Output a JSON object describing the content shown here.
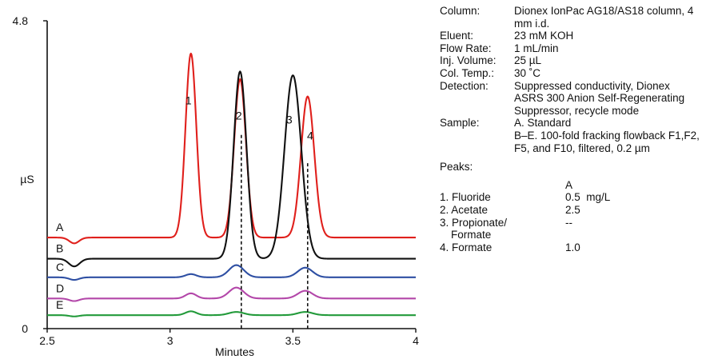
{
  "chart_data": {
    "type": "line",
    "xlabel": "Minutes",
    "ylabel": "µS",
    "xlim": [
      2.5,
      4.0
    ],
    "ylim": [
      0,
      4.8
    ],
    "xticks": [
      "2.5",
      "3",
      "3.5",
      "4"
    ],
    "yticks": [
      "0",
      "4.8"
    ],
    "series": [
      {
        "name": "A",
        "color": "#e0201c",
        "baseline": 1.42,
        "dip": {
          "x": 2.61,
          "depth": 0.09,
          "width": 0.02
        },
        "peaks": [
          {
            "x": 3.085,
            "h": 2.87,
            "w": 0.022
          },
          {
            "x": 3.285,
            "h": 2.47,
            "w": 0.024
          },
          {
            "x": 3.56,
            "h": 2.2,
            "w": 0.027
          }
        ]
      },
      {
        "name": "B",
        "color": "#111111",
        "baseline": 1.09,
        "dip": {
          "x": 2.61,
          "depth": 0.12,
          "width": 0.022
        },
        "peaks": [
          {
            "x": 3.285,
            "h": 2.92,
            "w": 0.026
          },
          {
            "x": 3.5,
            "h": 2.86,
            "w": 0.034
          }
        ]
      },
      {
        "name": "C",
        "color": "#2e4fa3",
        "baseline": 0.8,
        "dip": {
          "x": 2.61,
          "depth": 0.04,
          "width": 0.02
        },
        "peaks": [
          {
            "x": 3.085,
            "h": 0.05,
            "w": 0.022
          },
          {
            "x": 3.27,
            "h": 0.19,
            "w": 0.03
          },
          {
            "x": 3.55,
            "h": 0.15,
            "w": 0.03
          }
        ]
      },
      {
        "name": "D",
        "color": "#b347a9",
        "baseline": 0.47,
        "dip": {
          "x": 2.61,
          "depth": 0.04,
          "width": 0.02
        },
        "peaks": [
          {
            "x": 3.085,
            "h": 0.08,
            "w": 0.022
          },
          {
            "x": 3.27,
            "h": 0.17,
            "w": 0.03
          },
          {
            "x": 3.55,
            "h": 0.12,
            "w": 0.03
          }
        ]
      },
      {
        "name": "E",
        "color": "#229a3a",
        "baseline": 0.21,
        "dip": {
          "x": 2.61,
          "depth": 0.02,
          "width": 0.02
        },
        "peaks": [
          {
            "x": 3.085,
            "h": 0.06,
            "w": 0.022
          },
          {
            "x": 3.27,
            "h": 0.05,
            "w": 0.03
          },
          {
            "x": 3.55,
            "h": 0.05,
            "w": 0.03
          }
        ]
      }
    ],
    "peak_labels": [
      {
        "text": "1",
        "x": 3.075,
        "y": 3.5
      },
      {
        "text": "2",
        "x": 3.28,
        "y": 3.26
      },
      {
        "text": "3",
        "x": 3.485,
        "y": 3.2
      },
      {
        "text": "4",
        "x": 3.57,
        "y": 2.95
      }
    ],
    "reference_lines": [
      {
        "x": 3.29,
        "y_top": 3.02
      },
      {
        "x": 3.56,
        "y_top": 2.58
      }
    ]
  },
  "info": {
    "column_label": "Column:",
    "column_value": "Dionex IonPac AG18/AS18 column, 4 mm i.d.",
    "eluent_label": "Eluent:",
    "eluent_value": "23 mM KOH",
    "flow_label": "Flow Rate:",
    "flow_value": "1 mL/min",
    "inj_label": "Inj. Volume:",
    "inj_value": "25 µL",
    "temp_label": "Col. Temp.:",
    "temp_value": "30 ˚C",
    "detection_label": "Detection:",
    "detection_value": "Suppressed conductivity, Dionex ASRS 300 Anion Self-Regenerating Suppressor, recycle mode",
    "sample_label": "Sample:",
    "sample_value_1": "A. Standard",
    "sample_value_2": "B–E. 100-fold fracking flowback F1,F2, F5, and F10, filtered, 0.2 µm",
    "peaks_label": "Peaks:",
    "peaks_col_header": "A",
    "peaks": [
      {
        "name": "1. Fluoride",
        "value": "0.5  mg/L"
      },
      {
        "name": "2. Acetate",
        "value": "2.5"
      },
      {
        "name": "3. Propionate/",
        "value": "--"
      },
      {
        "name": "Formate",
        "value": ""
      },
      {
        "name": "4. Formate",
        "value": "1.0"
      }
    ]
  }
}
